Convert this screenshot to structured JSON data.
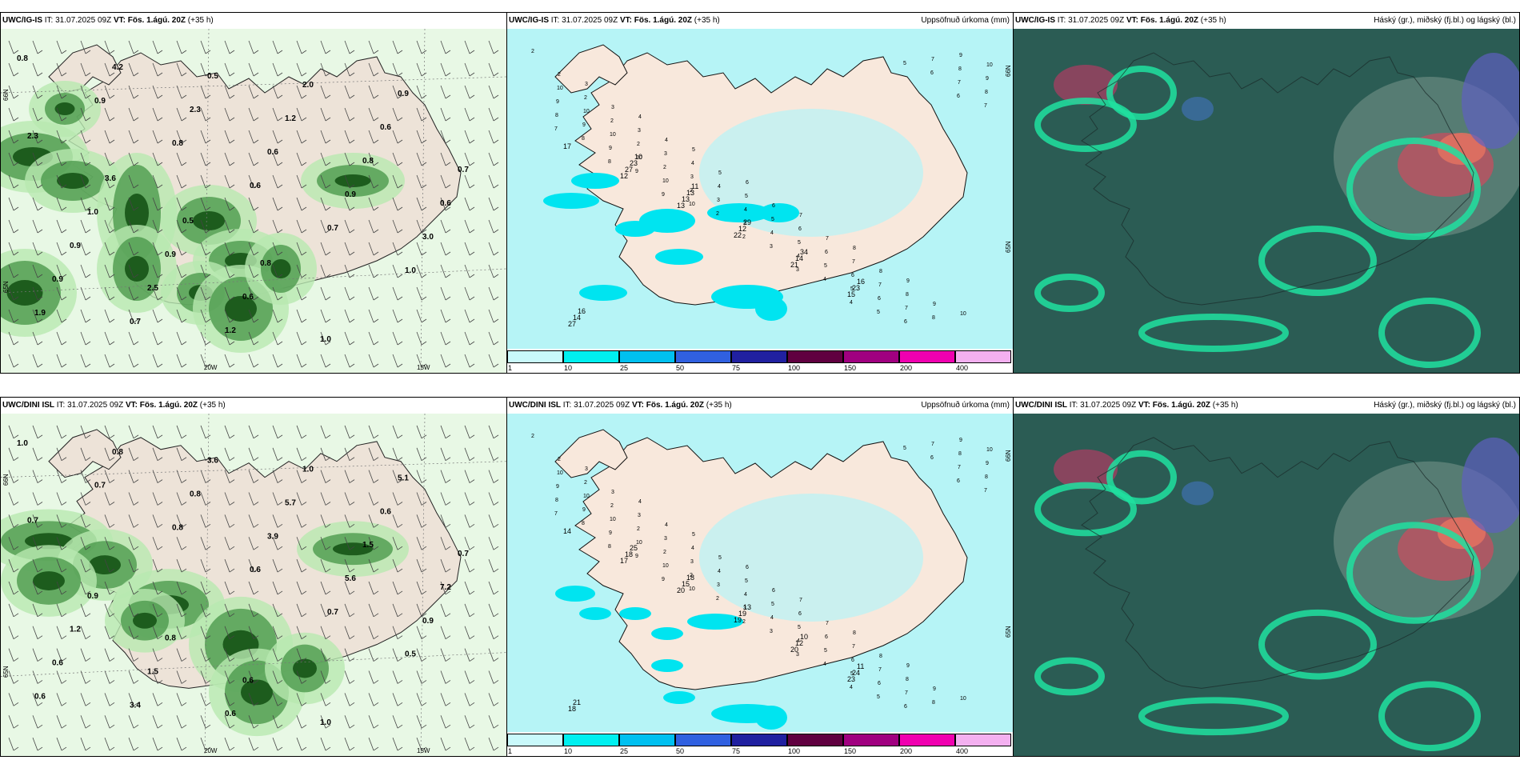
{
  "panels": [
    {
      "id": "top-left",
      "model": "UWC/IG-IS",
      "it_label": "IT:",
      "it": "31.07.2025 09Z",
      "vt_label": "VT:",
      "vt": "Fös. 1.ágú. 20Z",
      "lead": "(+35 h)",
      "right_title": ""
    },
    {
      "id": "top-mid",
      "model": "UWC/IG-IS",
      "it_label": "IT:",
      "it": "31.07.2025 09Z",
      "vt_label": "VT:",
      "vt": "Fös. 1.ágú. 20Z",
      "lead": "(+35 h)",
      "right_title": "Uppsöfnuð úrkoma (mm)"
    },
    {
      "id": "top-right",
      "model": "UWC/IG-IS",
      "it_label": "IT:",
      "it": "31.07.2025 09Z",
      "vt_label": "VT:",
      "vt": "Fös. 1.ágú. 20Z",
      "lead": "(+35 h)",
      "right_title": "Háský (gr.), miðský (fj.bl.) og lágský (bl.)"
    },
    {
      "id": "bot-left",
      "model": "UWC/DINI ISL",
      "it_label": "IT:",
      "it": "31.07.2025 09Z",
      "vt_label": "VT:",
      "vt": "Fös. 1.ágú. 20Z",
      "lead": "(+35 h)",
      "right_title": ""
    },
    {
      "id": "bot-mid",
      "model": "UWC/DINI ISL",
      "it_label": "IT:",
      "it": "31.07.2025 09Z",
      "vt_label": "VT:",
      "vt": "Fös. 1.ágú. 20Z",
      "lead": "(+35 h)",
      "right_title": "Uppsöfnuð úrkoma (mm)"
    },
    {
      "id": "bot-right",
      "model": "UWC/DINI ISL",
      "it_label": "IT:",
      "it": "31.07.2025 09Z",
      "vt_label": "VT:",
      "vt": "Fös. 1.ágú. 20Z",
      "lead": "(+35 h)",
      "right_title": "Háský (gr.), miðský (fj.bl.) og lágský (bl.)"
    }
  ],
  "axis_labels": {
    "lat66": "66N",
    "lat65": "65N",
    "lon20": "20W",
    "lon15": "15W"
  },
  "legend": {
    "ticks": [
      "1",
      "10",
      "25",
      "50",
      "75",
      "100",
      "150",
      "200",
      "400"
    ],
    "colors": [
      "#c9f9fb",
      "#00f0f0",
      "#00c0f0",
      "#3060e0",
      "#2020a0",
      "#600040",
      "#a00080",
      "#f000b0",
      "#f4b0f0"
    ]
  },
  "precip_top": [
    {
      "v": "17"
    },
    {
      "v": "12"
    },
    {
      "v": "13"
    },
    {
      "v": "22"
    },
    {
      "v": "21"
    },
    {
      "v": "15"
    },
    {
      "v": "27"
    },
    {
      "v": "27"
    },
    {
      "v": "13"
    },
    {
      "v": "12"
    },
    {
      "v": "14"
    },
    {
      "v": "23"
    },
    {
      "v": "14"
    },
    {
      "v": "23"
    },
    {
      "v": "13"
    },
    {
      "v": "29"
    },
    {
      "v": "34"
    },
    {
      "v": "16"
    },
    {
      "v": "16"
    },
    {
      "v": "10"
    },
    {
      "v": "11"
    }
  ],
  "precip_bot": [
    {
      "v": "14"
    },
    {
      "v": "17"
    },
    {
      "v": "20"
    },
    {
      "v": "19"
    },
    {
      "v": "20"
    },
    {
      "v": "23"
    },
    {
      "v": "18"
    },
    {
      "v": "18"
    },
    {
      "v": "15"
    },
    {
      "v": "19"
    },
    {
      "v": "12"
    },
    {
      "v": "24"
    },
    {
      "v": "21"
    },
    {
      "v": "25"
    },
    {
      "v": "18"
    },
    {
      "v": "13"
    },
    {
      "v": "10"
    },
    {
      "v": "11"
    }
  ],
  "rain_top": [
    {
      "v": "0.8"
    },
    {
      "v": "0.9"
    },
    {
      "v": "0.8"
    },
    {
      "v": "0.6"
    },
    {
      "v": "0.7"
    },
    {
      "v": "1.0"
    },
    {
      "v": "1.9"
    },
    {
      "v": "4.2"
    },
    {
      "v": "2.3"
    },
    {
      "v": "0.6"
    },
    {
      "v": "0.9"
    },
    {
      "v": "3.0"
    },
    {
      "v": "0.9"
    },
    {
      "v": "0.7"
    },
    {
      "v": "0.5"
    },
    {
      "v": "1.2"
    },
    {
      "v": "0.8"
    },
    {
      "v": "0.6"
    },
    {
      "v": "0.9"
    },
    {
      "v": "2.5"
    },
    {
      "v": "1.2"
    },
    {
      "v": "2.0"
    },
    {
      "v": "0.6"
    },
    {
      "v": "0.7"
    },
    {
      "v": "1.0"
    },
    {
      "v": "0.9"
    },
    {
      "v": "0.6"
    },
    {
      "v": "1.0"
    },
    {
      "v": "0.9"
    },
    {
      "v": "2.3"
    },
    {
      "v": "3.6"
    },
    {
      "v": "0.5"
    },
    {
      "v": "0.8"
    }
  ],
  "rain_bot": [
    {
      "v": "1.0"
    },
    {
      "v": "0.7"
    },
    {
      "v": "0.8"
    },
    {
      "v": "0.6"
    },
    {
      "v": "0.7"
    },
    {
      "v": "0.5"
    },
    {
      "v": "0.6"
    },
    {
      "v": "0.8"
    },
    {
      "v": "0.8"
    },
    {
      "v": "3.9"
    },
    {
      "v": "5.6"
    },
    {
      "v": "0.9"
    },
    {
      "v": "0.6"
    },
    {
      "v": "3.4"
    },
    {
      "v": "3.6"
    },
    {
      "v": "5.7"
    },
    {
      "v": "1.5"
    },
    {
      "v": "7.2"
    },
    {
      "v": "1.2"
    },
    {
      "v": "1.5"
    },
    {
      "v": "0.6"
    },
    {
      "v": "1.0"
    },
    {
      "v": "0.6"
    },
    {
      "v": "0.7"
    },
    {
      "v": "0.9"
    },
    {
      "v": "0.8"
    },
    {
      "v": "0.6"
    },
    {
      "v": "1.0"
    },
    {
      "v": "5.1"
    },
    {
      "v": "0.7"
    }
  ]
}
